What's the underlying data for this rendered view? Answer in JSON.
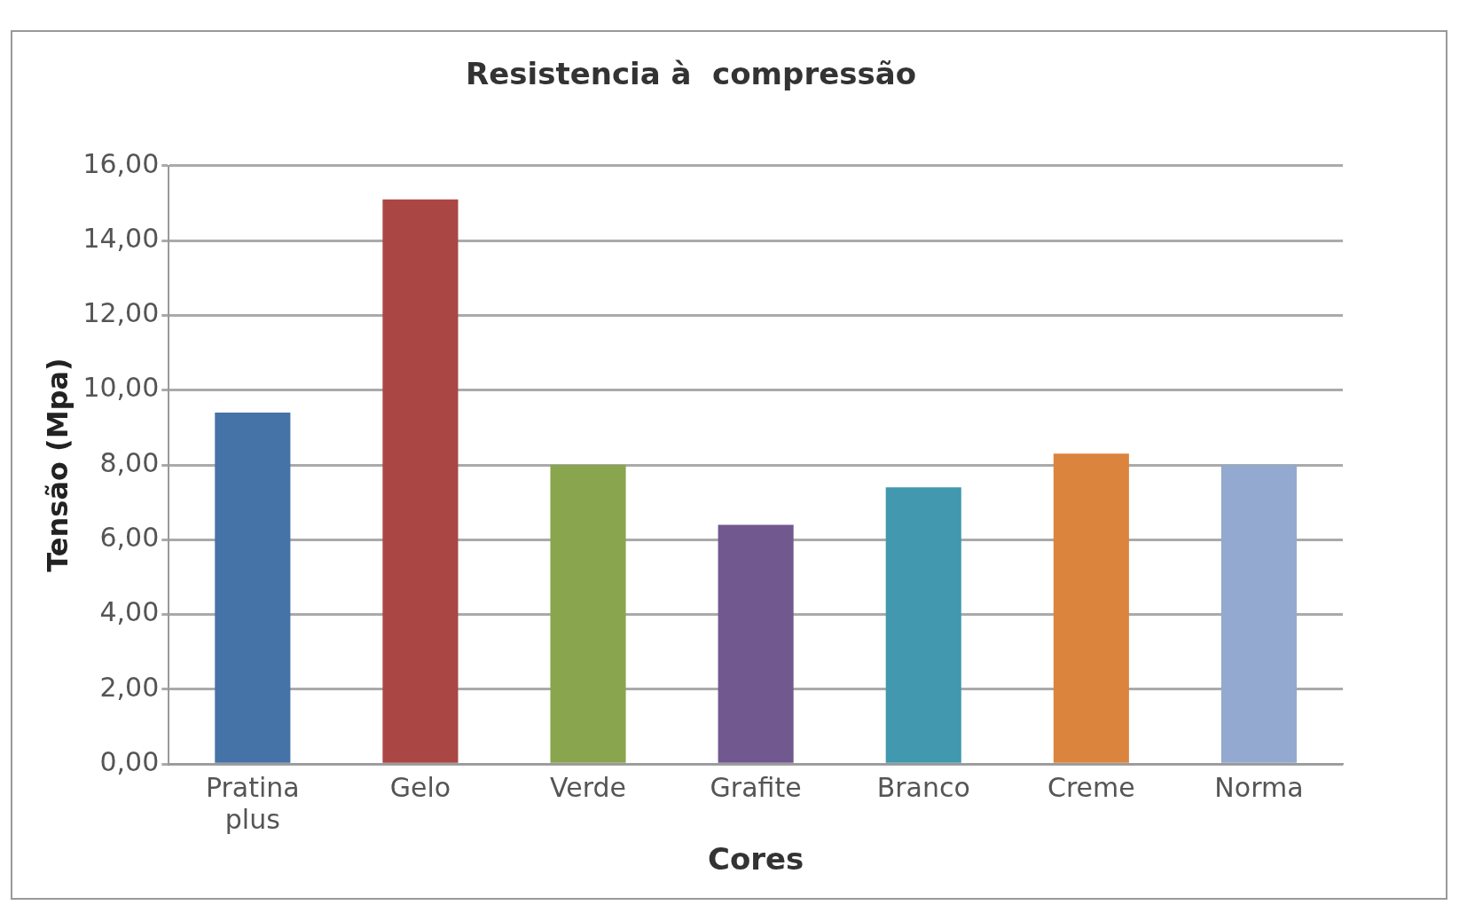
{
  "chart_data": {
    "type": "bar",
    "title": "Resistencia à  compressão",
    "xlabel": "Cores",
    "ylabel": "Tensão (Mpa)",
    "categories": [
      [
        "Pratina",
        "plus"
      ],
      "Gelo",
      "Verde",
      "Grafite",
      "Branco",
      "Creme",
      "Norma"
    ],
    "values": [
      9.4,
      15.1,
      8.0,
      6.4,
      7.4,
      8.3,
      8.0
    ],
    "colors": [
      "#4572a7",
      "#aa4643",
      "#89a54e",
      "#71588f",
      "#4198af",
      "#db843d",
      "#93a9cf"
    ],
    "ylim": [
      0,
      16
    ],
    "yticks": [
      {
        "value": 0,
        "label": "0,00"
      },
      {
        "value": 2,
        "label": "2,00"
      },
      {
        "value": 4,
        "label": "4,00"
      },
      {
        "value": 6,
        "label": "6,00"
      },
      {
        "value": 8,
        "label": "8,00"
      },
      {
        "value": 10,
        "label": "10,00"
      },
      {
        "value": 12,
        "label": "12,00"
      },
      {
        "value": 14,
        "label": "14,00"
      },
      {
        "value": 16,
        "label": "16,00"
      }
    ],
    "grid": "y",
    "legend": false
  }
}
